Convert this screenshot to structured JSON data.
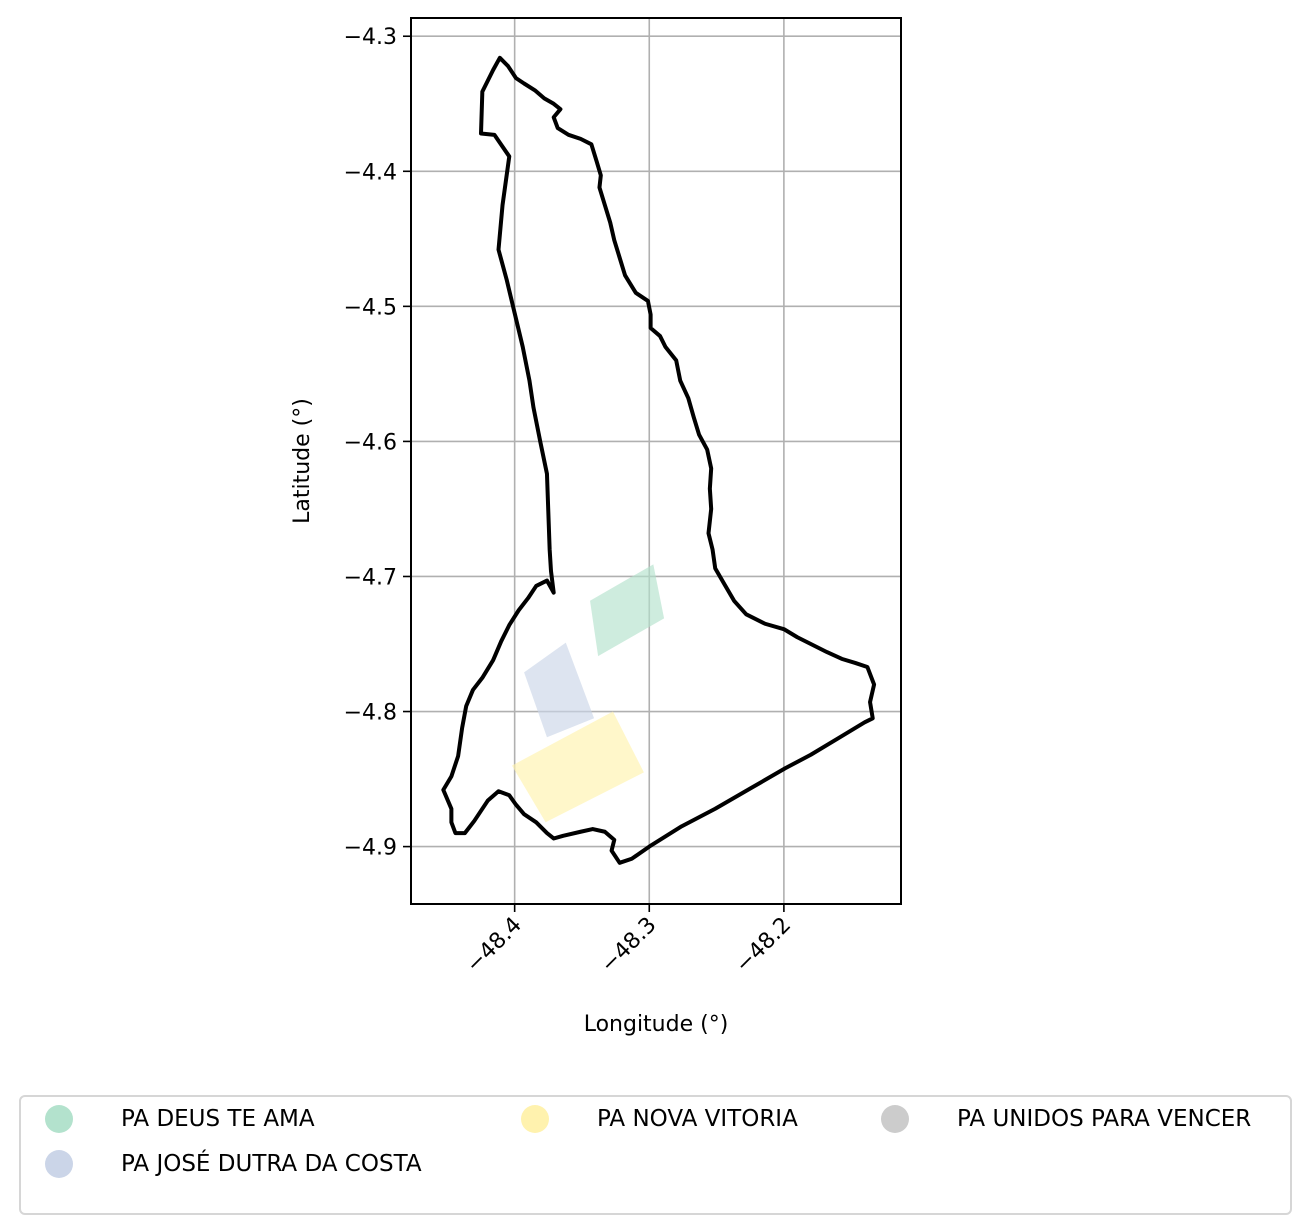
{
  "chart_data": {
    "type": "map",
    "xlabel": "Longitude (°)",
    "ylabel": "Latitude (°)",
    "xlim": [
      -48.477,
      -48.113
    ],
    "ylim": [
      -4.9425,
      -4.2865
    ],
    "x_ticks": [
      {
        "value": -48.4,
        "label": "−48.4"
      },
      {
        "value": -48.3,
        "label": "−48.3"
      },
      {
        "value": -48.2,
        "label": "−48.2"
      }
    ],
    "y_ticks": [
      {
        "value": -4.3,
        "label": "−4.3"
      },
      {
        "value": -4.4,
        "label": "−4.4"
      },
      {
        "value": -4.5,
        "label": "−4.5"
      },
      {
        "value": -4.6,
        "label": "−4.6"
      },
      {
        "value": -4.7,
        "label": "−4.7"
      },
      {
        "value": -4.8,
        "label": "−4.8"
      },
      {
        "value": -4.9,
        "label": "−4.9"
      }
    ],
    "grid": true,
    "boundary": {
      "color": "#000000",
      "coords": [
        [
          -48.411,
          -4.316
        ],
        [
          -48.405,
          -4.322
        ],
        [
          -48.399,
          -4.331
        ],
        [
          -48.393,
          -4.335
        ],
        [
          -48.385,
          -4.34
        ],
        [
          -48.378,
          -4.346
        ],
        [
          -48.371,
          -4.35
        ],
        [
          -48.366,
          -4.354
        ],
        [
          -48.371,
          -4.36
        ],
        [
          -48.368,
          -4.368
        ],
        [
          -48.36,
          -4.373
        ],
        [
          -48.351,
          -4.376
        ],
        [
          -48.343,
          -4.38
        ],
        [
          -48.339,
          -4.393
        ],
        [
          -48.336,
          -4.403
        ],
        [
          -48.337,
          -4.412
        ],
        [
          -48.333,
          -4.425
        ],
        [
          -48.329,
          -4.438
        ],
        [
          -48.326,
          -4.451
        ],
        [
          -48.322,
          -4.464
        ],
        [
          -48.318,
          -4.477
        ],
        [
          -48.31,
          -4.49
        ],
        [
          -48.301,
          -4.496
        ],
        [
          -48.299,
          -4.506
        ],
        [
          -48.299,
          -4.516
        ],
        [
          -48.292,
          -4.522
        ],
        [
          -48.288,
          -4.53
        ],
        [
          -48.28,
          -4.54
        ],
        [
          -48.277,
          -4.555
        ],
        [
          -48.271,
          -4.568
        ],
        [
          -48.267,
          -4.582
        ],
        [
          -48.263,
          -4.595
        ],
        [
          -48.257,
          -4.606
        ],
        [
          -48.254,
          -4.62
        ],
        [
          -48.255,
          -4.635
        ],
        [
          -48.254,
          -4.65
        ],
        [
          -48.256,
          -4.668
        ],
        [
          -48.253,
          -4.68
        ],
        [
          -48.251,
          -4.694
        ],
        [
          -48.244,
          -4.706
        ],
        [
          -48.237,
          -4.718
        ],
        [
          -48.228,
          -4.728
        ],
        [
          -48.214,
          -4.735
        ],
        [
          -48.2,
          -4.739
        ],
        [
          -48.19,
          -4.745
        ],
        [
          -48.18,
          -4.75
        ],
        [
          -48.168,
          -4.756
        ],
        [
          -48.157,
          -4.761
        ],
        [
          -48.147,
          -4.764
        ],
        [
          -48.138,
          -4.767
        ],
        [
          -48.133,
          -4.78
        ],
        [
          -48.136,
          -4.793
        ],
        [
          -48.134,
          -4.805
        ],
        [
          -48.14,
          -4.808
        ],
        [
          -48.16,
          -4.82
        ],
        [
          -48.18,
          -4.832
        ],
        [
          -48.199,
          -4.842
        ],
        [
          -48.225,
          -4.857
        ],
        [
          -48.251,
          -4.872
        ],
        [
          -48.276,
          -4.885
        ],
        [
          -48.3,
          -4.9
        ],
        [
          -48.313,
          -4.909
        ],
        [
          -48.322,
          -4.912
        ],
        [
          -48.328,
          -4.903
        ],
        [
          -48.326,
          -4.895
        ],
        [
          -48.333,
          -4.889
        ],
        [
          -48.342,
          -4.887
        ],
        [
          -48.351,
          -4.889
        ],
        [
          -48.364,
          -4.892
        ],
        [
          -48.371,
          -4.894
        ],
        [
          -48.376,
          -4.89
        ],
        [
          -48.384,
          -4.882
        ],
        [
          -48.393,
          -4.876
        ],
        [
          -48.399,
          -4.869
        ],
        [
          -48.404,
          -4.862
        ],
        [
          -48.412,
          -4.859
        ],
        [
          -48.42,
          -4.866
        ],
        [
          -48.43,
          -4.881
        ],
        [
          -48.437,
          -4.89
        ],
        [
          -48.444,
          -4.89
        ],
        [
          -48.447,
          -4.882
        ],
        [
          -48.447,
          -4.872
        ],
        [
          -48.453,
          -4.858
        ],
        [
          -48.447,
          -4.848
        ],
        [
          -48.442,
          -4.833
        ],
        [
          -48.439,
          -4.812
        ],
        [
          -48.436,
          -4.796
        ],
        [
          -48.431,
          -4.784
        ],
        [
          -48.424,
          -4.775
        ],
        [
          -48.416,
          -4.762
        ],
        [
          -48.41,
          -4.748
        ],
        [
          -48.404,
          -4.736
        ],
        [
          -48.397,
          -4.725
        ],
        [
          -48.39,
          -4.716
        ],
        [
          -48.384,
          -4.707
        ],
        [
          -48.376,
          -4.703
        ],
        [
          -48.371,
          -4.712
        ],
        [
          -48.373,
          -4.696
        ],
        [
          -48.374,
          -4.68
        ],
        [
          -48.375,
          -4.652
        ],
        [
          -48.376,
          -4.624
        ],
        [
          -48.381,
          -4.6
        ],
        [
          -48.386,
          -4.575
        ],
        [
          -48.389,
          -4.555
        ],
        [
          -48.394,
          -4.53
        ],
        [
          -48.4,
          -4.505
        ],
        [
          -48.406,
          -4.48
        ],
        [
          -48.412,
          -4.458
        ],
        [
          -48.409,
          -4.425
        ],
        [
          -48.404,
          -4.389
        ],
        [
          -48.415,
          -4.373
        ],
        [
          -48.425,
          -4.372
        ],
        [
          -48.424,
          -4.341
        ],
        [
          -48.416,
          -4.325
        ],
        [
          -48.411,
          -4.316
        ]
      ]
    },
    "series": [
      {
        "name": "PA DEUS TE AMA",
        "color": "#b3e2cd",
        "polygon": [
          [
            -48.344,
            -4.718
          ],
          [
            -48.297,
            -4.691
          ],
          [
            -48.289,
            -4.731
          ],
          [
            -48.338,
            -4.759
          ]
        ]
      },
      {
        "name": "PA JOSÉ DUTRA DA COSTA",
        "color": "#cbd5e8",
        "polygon": [
          [
            -48.393,
            -4.771
          ],
          [
            -48.362,
            -4.749
          ],
          [
            -48.341,
            -4.805
          ],
          [
            -48.376,
            -4.819
          ]
        ]
      },
      {
        "name": "PA NOVA VITORIA",
        "color": "#fff2ae",
        "polygon": [
          [
            -48.402,
            -4.84
          ],
          [
            -48.327,
            -4.8
          ],
          [
            -48.304,
            -4.845
          ],
          [
            -48.377,
            -4.882
          ]
        ]
      },
      {
        "name": "PA UNIDOS PARA VENCER",
        "color": "#cccccc",
        "polygon": []
      }
    ],
    "legend": {
      "placement": "bottom, below plot, 3 columns",
      "items": [
        {
          "label": "PA DEUS TE AMA",
          "color": "#b3e2cd"
        },
        {
          "label": "PA JOSÉ DUTRA DA COSTA",
          "color": "#cbd5e8"
        },
        {
          "label": "PA NOVA VITORIA",
          "color": "#fff2ae"
        },
        {
          "label": "PA UNIDOS PARA VENCER",
          "color": "#cccccc"
        }
      ]
    }
  }
}
